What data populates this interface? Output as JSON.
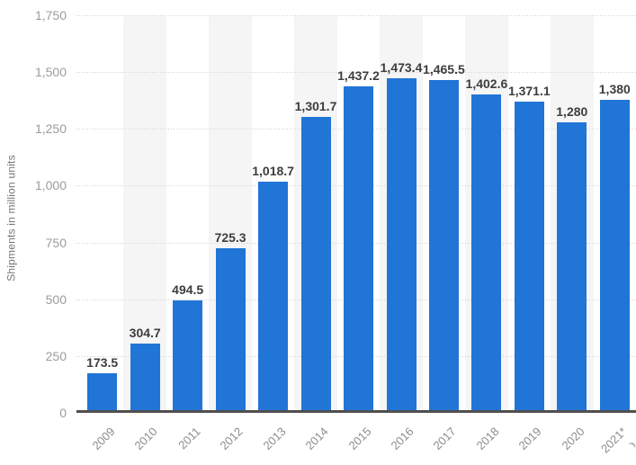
{
  "chart_data": {
    "type": "bar",
    "title": "",
    "ylabel": "Shipments in million units",
    "xlabel": "",
    "categories": [
      "2009",
      "2010",
      "2011",
      "2012",
      "2013",
      "2014",
      "2015",
      "2016",
      "2017",
      "2018",
      "2019",
      "2020",
      "2021*"
    ],
    "values": [
      173.5,
      304.7,
      494.5,
      725.3,
      1018.7,
      1301.7,
      1437.2,
      1473.4,
      1465.5,
      1402.6,
      1371.1,
      1280,
      1380
    ],
    "value_labels": [
      "173.5",
      "304.7",
      "494.5",
      "725.3",
      "1,018.7",
      "1,301.7",
      "1,437.2",
      "1,473.4",
      "1,465.5",
      "1,402.6",
      "1,371.1",
      "1,280",
      "1,380"
    ],
    "ylim": [
      0,
      1750
    ],
    "ytick_interval": 250,
    "yticks": [
      "0",
      "250",
      "500",
      "750",
      "1,000",
      "1,250",
      "1,500",
      "1,750"
    ],
    "grid": "horizontal-dotted",
    "legend": "none",
    "plot_background": "alternating vertical bands on even years starting 2010",
    "colors": {
      "bar": "#2175d6",
      "band": "#f5f5f5",
      "gridline": "#cfcfcf",
      "axis_line": "#4f4f4f",
      "ytick_text": "#9c9c9c",
      "xtick_text": "#8c8c8c",
      "value_label_text": "#3d3d3d",
      "y_title_text": "#767676"
    }
  }
}
